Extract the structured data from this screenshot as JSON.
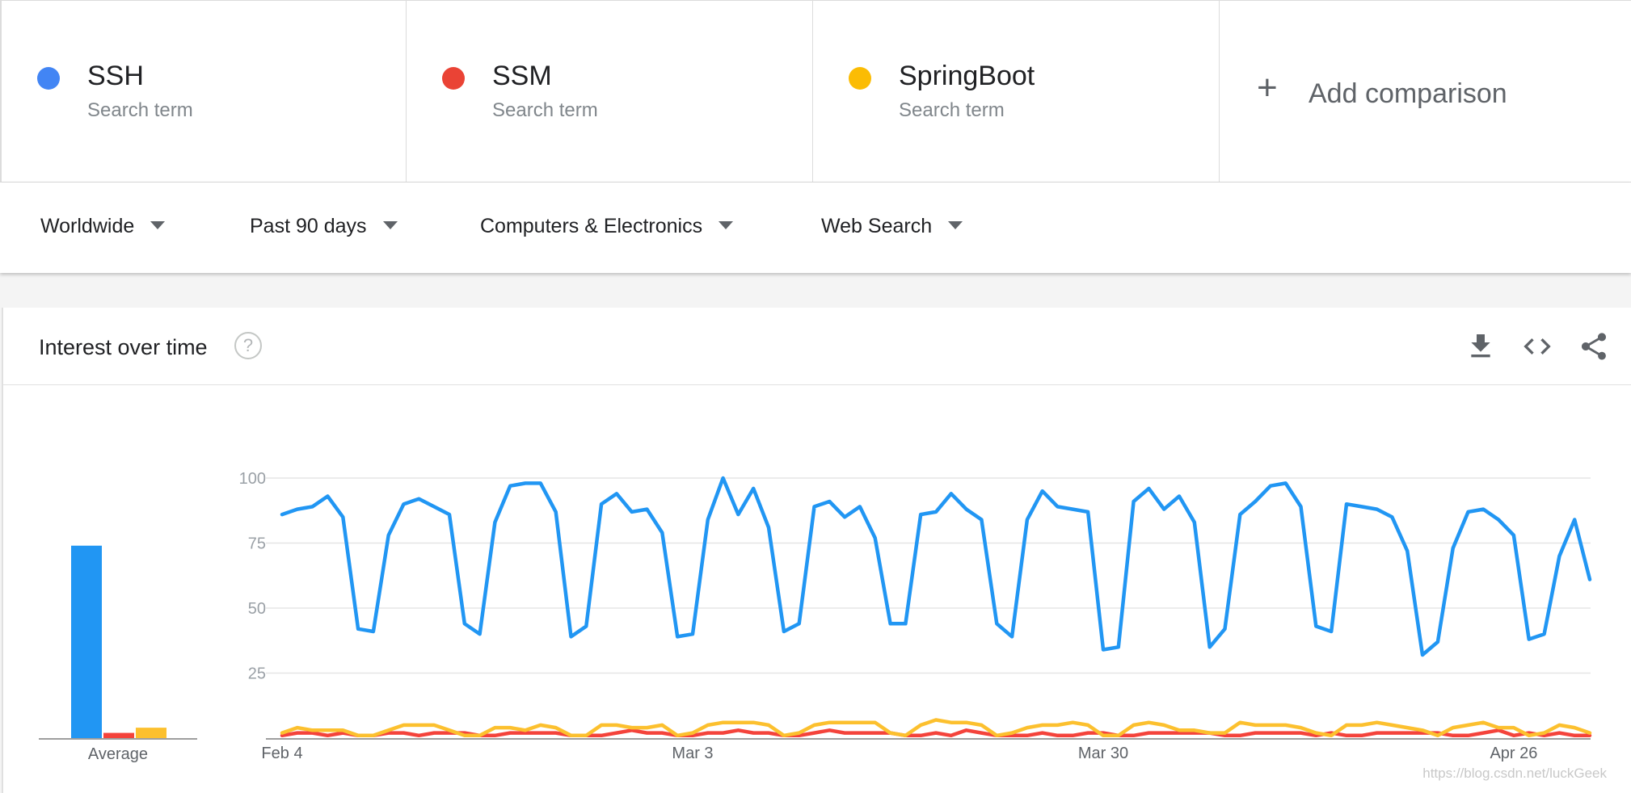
{
  "colors": {
    "ssh": "#4285f4",
    "ssm": "#ea4335",
    "springboot": "#fbbc04",
    "line_ssh": "#2196f3",
    "line_ssm": "#f4433b",
    "line_springboot": "#fcc02e"
  },
  "terms": [
    {
      "name": "SSH",
      "subtitle": "Search term",
      "color": "#4285f4"
    },
    {
      "name": "SSM",
      "subtitle": "Search term",
      "color": "#ea4335"
    },
    {
      "name": "SpringBoot",
      "subtitle": "Search term",
      "color": "#fbbc04"
    }
  ],
  "add_comparison": {
    "icon": "plus-icon",
    "label": "Add comparison"
  },
  "filters": [
    {
      "label": "Worldwide",
      "icon": "caret-down-icon"
    },
    {
      "label": "Past 90 days",
      "icon": "caret-down-icon"
    },
    {
      "label": "Computers & Electronics",
      "icon": "caret-down-icon"
    },
    {
      "label": "Web Search",
      "icon": "caret-down-icon"
    }
  ],
  "panel": {
    "title": "Interest over time",
    "help_icon": "help-icon",
    "actions": [
      "download-icon",
      "embed-code-icon",
      "share-icon"
    ]
  },
  "watermark": "https://blog.csdn.net/luckGeek",
  "chart_data": {
    "type": "line",
    "title": "Interest over time",
    "ylim": [
      0,
      100
    ],
    "yticks": [
      25,
      50,
      75,
      100
    ],
    "grid": true,
    "x_tick_labels": [
      "Feb 4",
      "Mar 3",
      "Mar 30",
      "Apr 26"
    ],
    "x_tick_index": [
      0,
      27,
      54,
      81
    ],
    "average": {
      "label": "Average",
      "values": [
        74,
        2,
        4
      ]
    },
    "series": [
      {
        "name": "SSH",
        "values": [
          86,
          88,
          89,
          93,
          85,
          42,
          41,
          78,
          90,
          92,
          89,
          86,
          44,
          40,
          83,
          97,
          98,
          98,
          87,
          39,
          43,
          90,
          94,
          87,
          88,
          79,
          39,
          40,
          84,
          100,
          86,
          96,
          81,
          41,
          44,
          89,
          91,
          85,
          89,
          77,
          44,
          44,
          86,
          87,
          94,
          88,
          84,
          44,
          39,
          84,
          95,
          89,
          88,
          87,
          34,
          35,
          91,
          96,
          88,
          93,
          83,
          35,
          42,
          86,
          91,
          97,
          98,
          89,
          43,
          41,
          90,
          89,
          88,
          85,
          72,
          32,
          37,
          73,
          87,
          88,
          84,
          78,
          38,
          40,
          70,
          84,
          61
        ]
      },
      {
        "name": "SSM",
        "values": [
          1,
          2,
          2,
          1,
          2,
          1,
          1,
          2,
          2,
          1,
          2,
          2,
          2,
          1,
          1,
          2,
          2,
          2,
          2,
          1,
          1,
          1,
          2,
          3,
          2,
          2,
          1,
          1,
          2,
          2,
          3,
          2,
          2,
          1,
          1,
          2,
          3,
          2,
          2,
          2,
          2,
          1,
          1,
          2,
          1,
          3,
          2,
          1,
          1,
          1,
          2,
          1,
          1,
          2,
          2,
          1,
          1,
          2,
          2,
          2,
          2,
          2,
          1,
          1,
          2,
          2,
          2,
          2,
          1,
          2,
          1,
          1,
          2,
          2,
          2,
          2,
          2,
          1,
          1,
          2,
          3,
          1,
          2,
          1,
          2,
          1,
          1
        ]
      },
      {
        "name": "SpringBoot",
        "values": [
          2,
          4,
          3,
          3,
          3,
          1,
          1,
          3,
          5,
          5,
          5,
          3,
          1,
          1,
          4,
          4,
          3,
          5,
          4,
          1,
          1,
          5,
          5,
          4,
          4,
          5,
          1,
          2,
          5,
          6,
          6,
          6,
          5,
          1,
          2,
          5,
          6,
          6,
          6,
          6,
          2,
          1,
          5,
          7,
          6,
          6,
          5,
          1,
          2,
          4,
          5,
          5,
          6,
          5,
          1,
          1,
          5,
          6,
          5,
          3,
          3,
          2,
          2,
          6,
          5,
          5,
          5,
          4,
          2,
          1,
          5,
          5,
          6,
          5,
          4,
          3,
          1,
          4,
          5,
          6,
          4,
          4,
          1,
          2,
          5,
          4,
          2
        ]
      }
    ]
  }
}
